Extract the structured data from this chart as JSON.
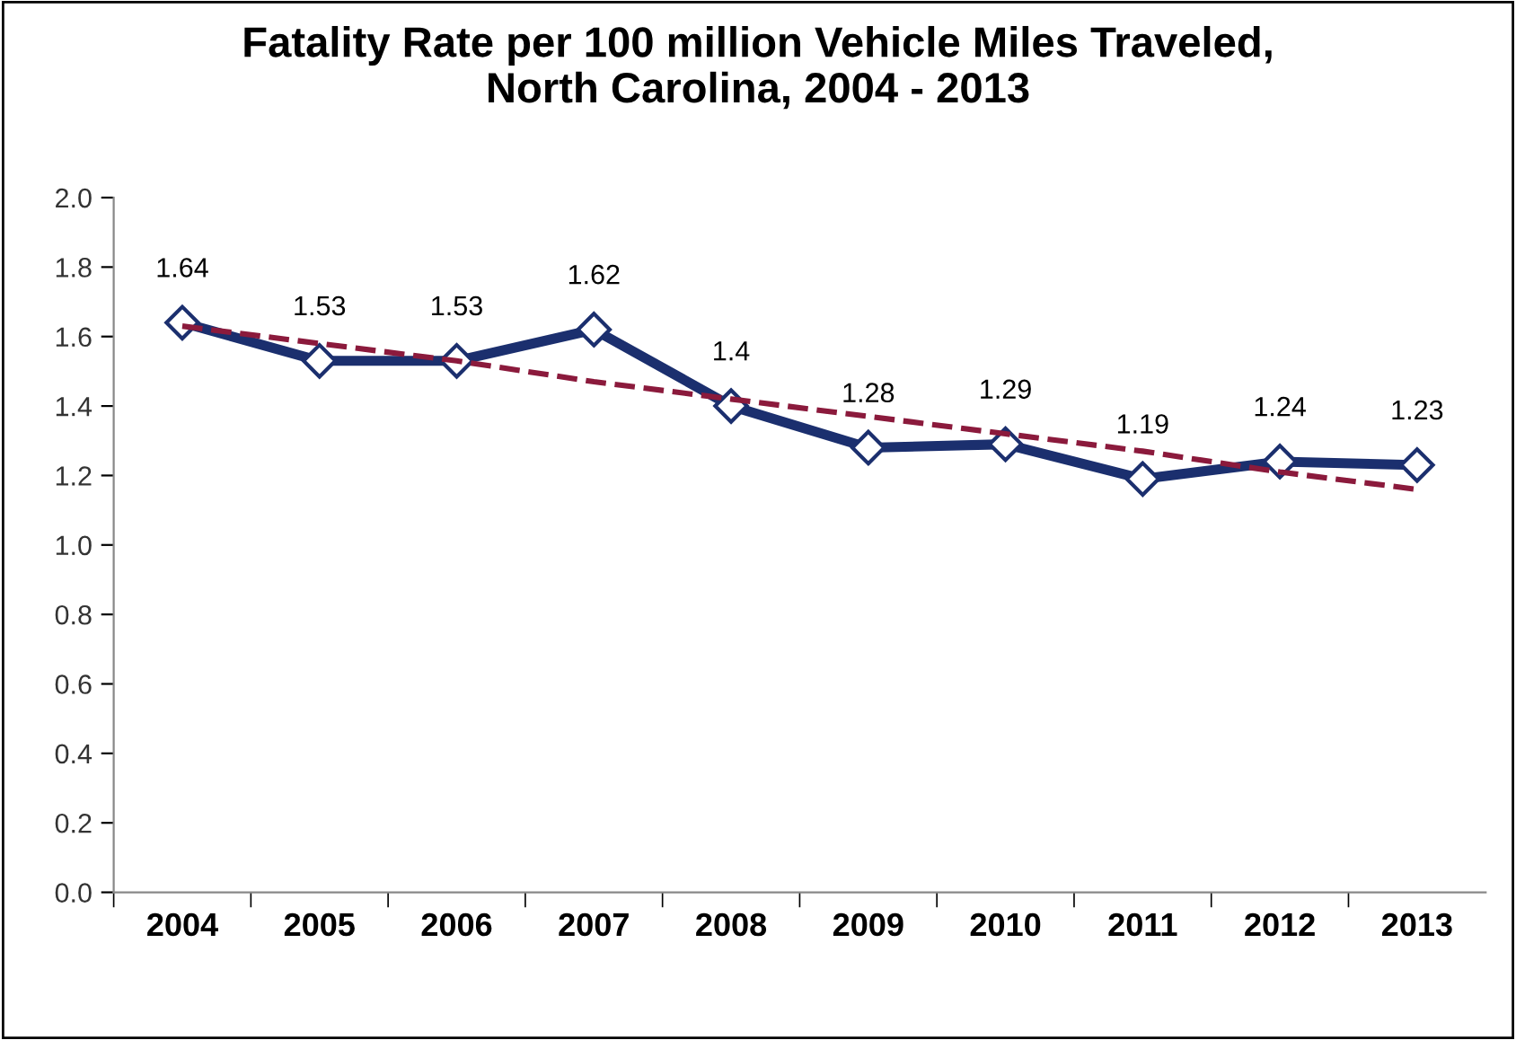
{
  "chart_data": {
    "type": "line",
    "title": "Fatality Rate per 100 million Vehicle Miles Traveled,\nNorth Carolina, 2004 - 2013",
    "categories": [
      "2004",
      "2005",
      "2006",
      "2007",
      "2008",
      "2009",
      "2010",
      "2011",
      "2012",
      "2013"
    ],
    "series": [
      {
        "color": "#1b2f6e",
        "marker": "diamond",
        "line_style": "solid",
        "values": [
          1.64,
          1.53,
          1.53,
          1.62,
          1.4,
          1.28,
          1.29,
          1.19,
          1.24,
          1.23
        ],
        "value_labels": [
          "1.64",
          "1.53",
          "1.53",
          "1.62",
          "1.4",
          "1.28",
          "1.29",
          "1.19",
          "1.24",
          "1.23"
        ]
      },
      {
        "color": "#8b1a3c",
        "marker": "none",
        "line_style": "dashed",
        "values": [
          1.63,
          1.58,
          1.53,
          1.47,
          1.42,
          1.37,
          1.32,
          1.27,
          1.21,
          1.16
        ]
      }
    ],
    "ylim": [
      0,
      2.0
    ],
    "yticks": [
      {
        "value": 0,
        "label": "0.0"
      },
      {
        "value": 0.2,
        "label": "0.2"
      },
      {
        "value": 0.4,
        "label": "0.4"
      },
      {
        "value": 0.6,
        "label": "0.6"
      },
      {
        "value": 0.8,
        "label": "0.8"
      },
      {
        "value": 1.0,
        "label": "1.0"
      },
      {
        "value": 1.2,
        "label": "1.2"
      },
      {
        "value": 1.4,
        "label": "1.4"
      },
      {
        "value": 1.6,
        "label": "1.6"
      },
      {
        "value": 1.8,
        "label": "1.8"
      },
      {
        "value": 2.0,
        "label": "2.0"
      }
    ],
    "grid": false,
    "legend": false
  }
}
